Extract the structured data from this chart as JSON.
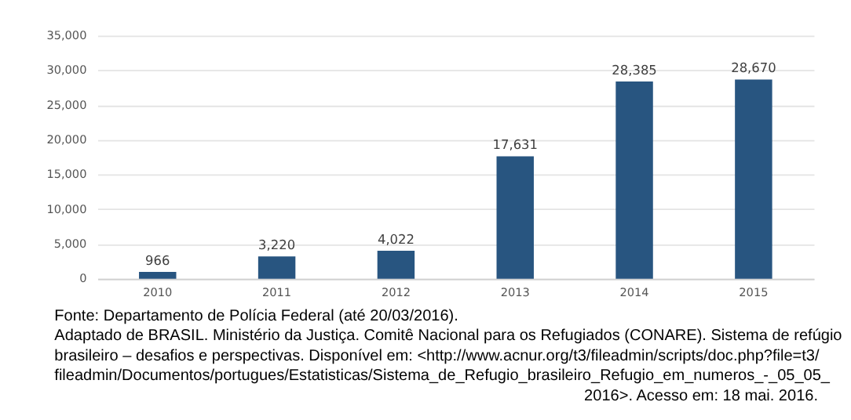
{
  "chart_data": {
    "type": "bar",
    "categories": [
      "2010",
      "2011",
      "2012",
      "2013",
      "2014",
      "2015"
    ],
    "values": [
      966,
      3220,
      4022,
      17631,
      28385,
      28670
    ],
    "value_labels": [
      "966",
      "3,220",
      "4,022",
      "17,631",
      "28,385",
      "28,670"
    ],
    "color": "#285580",
    "ylim": [
      0,
      35000
    ],
    "yticks": [
      0,
      {
        "value": 5000,
        "label": "5,000"
      },
      {
        "value": 10000,
        "label": "10,000"
      },
      {
        "value": 15000,
        "label": "15,000"
      },
      {
        "value": 20000,
        "label": "20,000"
      },
      {
        "value": 25000,
        "label": "25,000"
      },
      {
        "value": 30000,
        "label": "30,000"
      },
      {
        "value": 35000,
        "label": "35,000"
      }
    ],
    "grid": "y",
    "annotations": [
      "Fonte: Departamento de Polícia Federal (até 20/03/2016).",
      "Adaptado de BRASIL. Ministério da Justiça. Comitê Nacional para os Refugiados (CONARE). Sistema de refúgio",
      "brasileiro – desafios e perspectivas. Disponível em: <http://www.acnur.org/t3/fileadmin/scripts/doc.php?file=t3/",
      "fileadmin/Documentos/portugues/Estatisticas/Sistema_de_Refugio_brasileiro_Refugio_em_numeros_-_05_05_",
      "2016>. Acesso em: 18 mai. 2016."
    ]
  }
}
